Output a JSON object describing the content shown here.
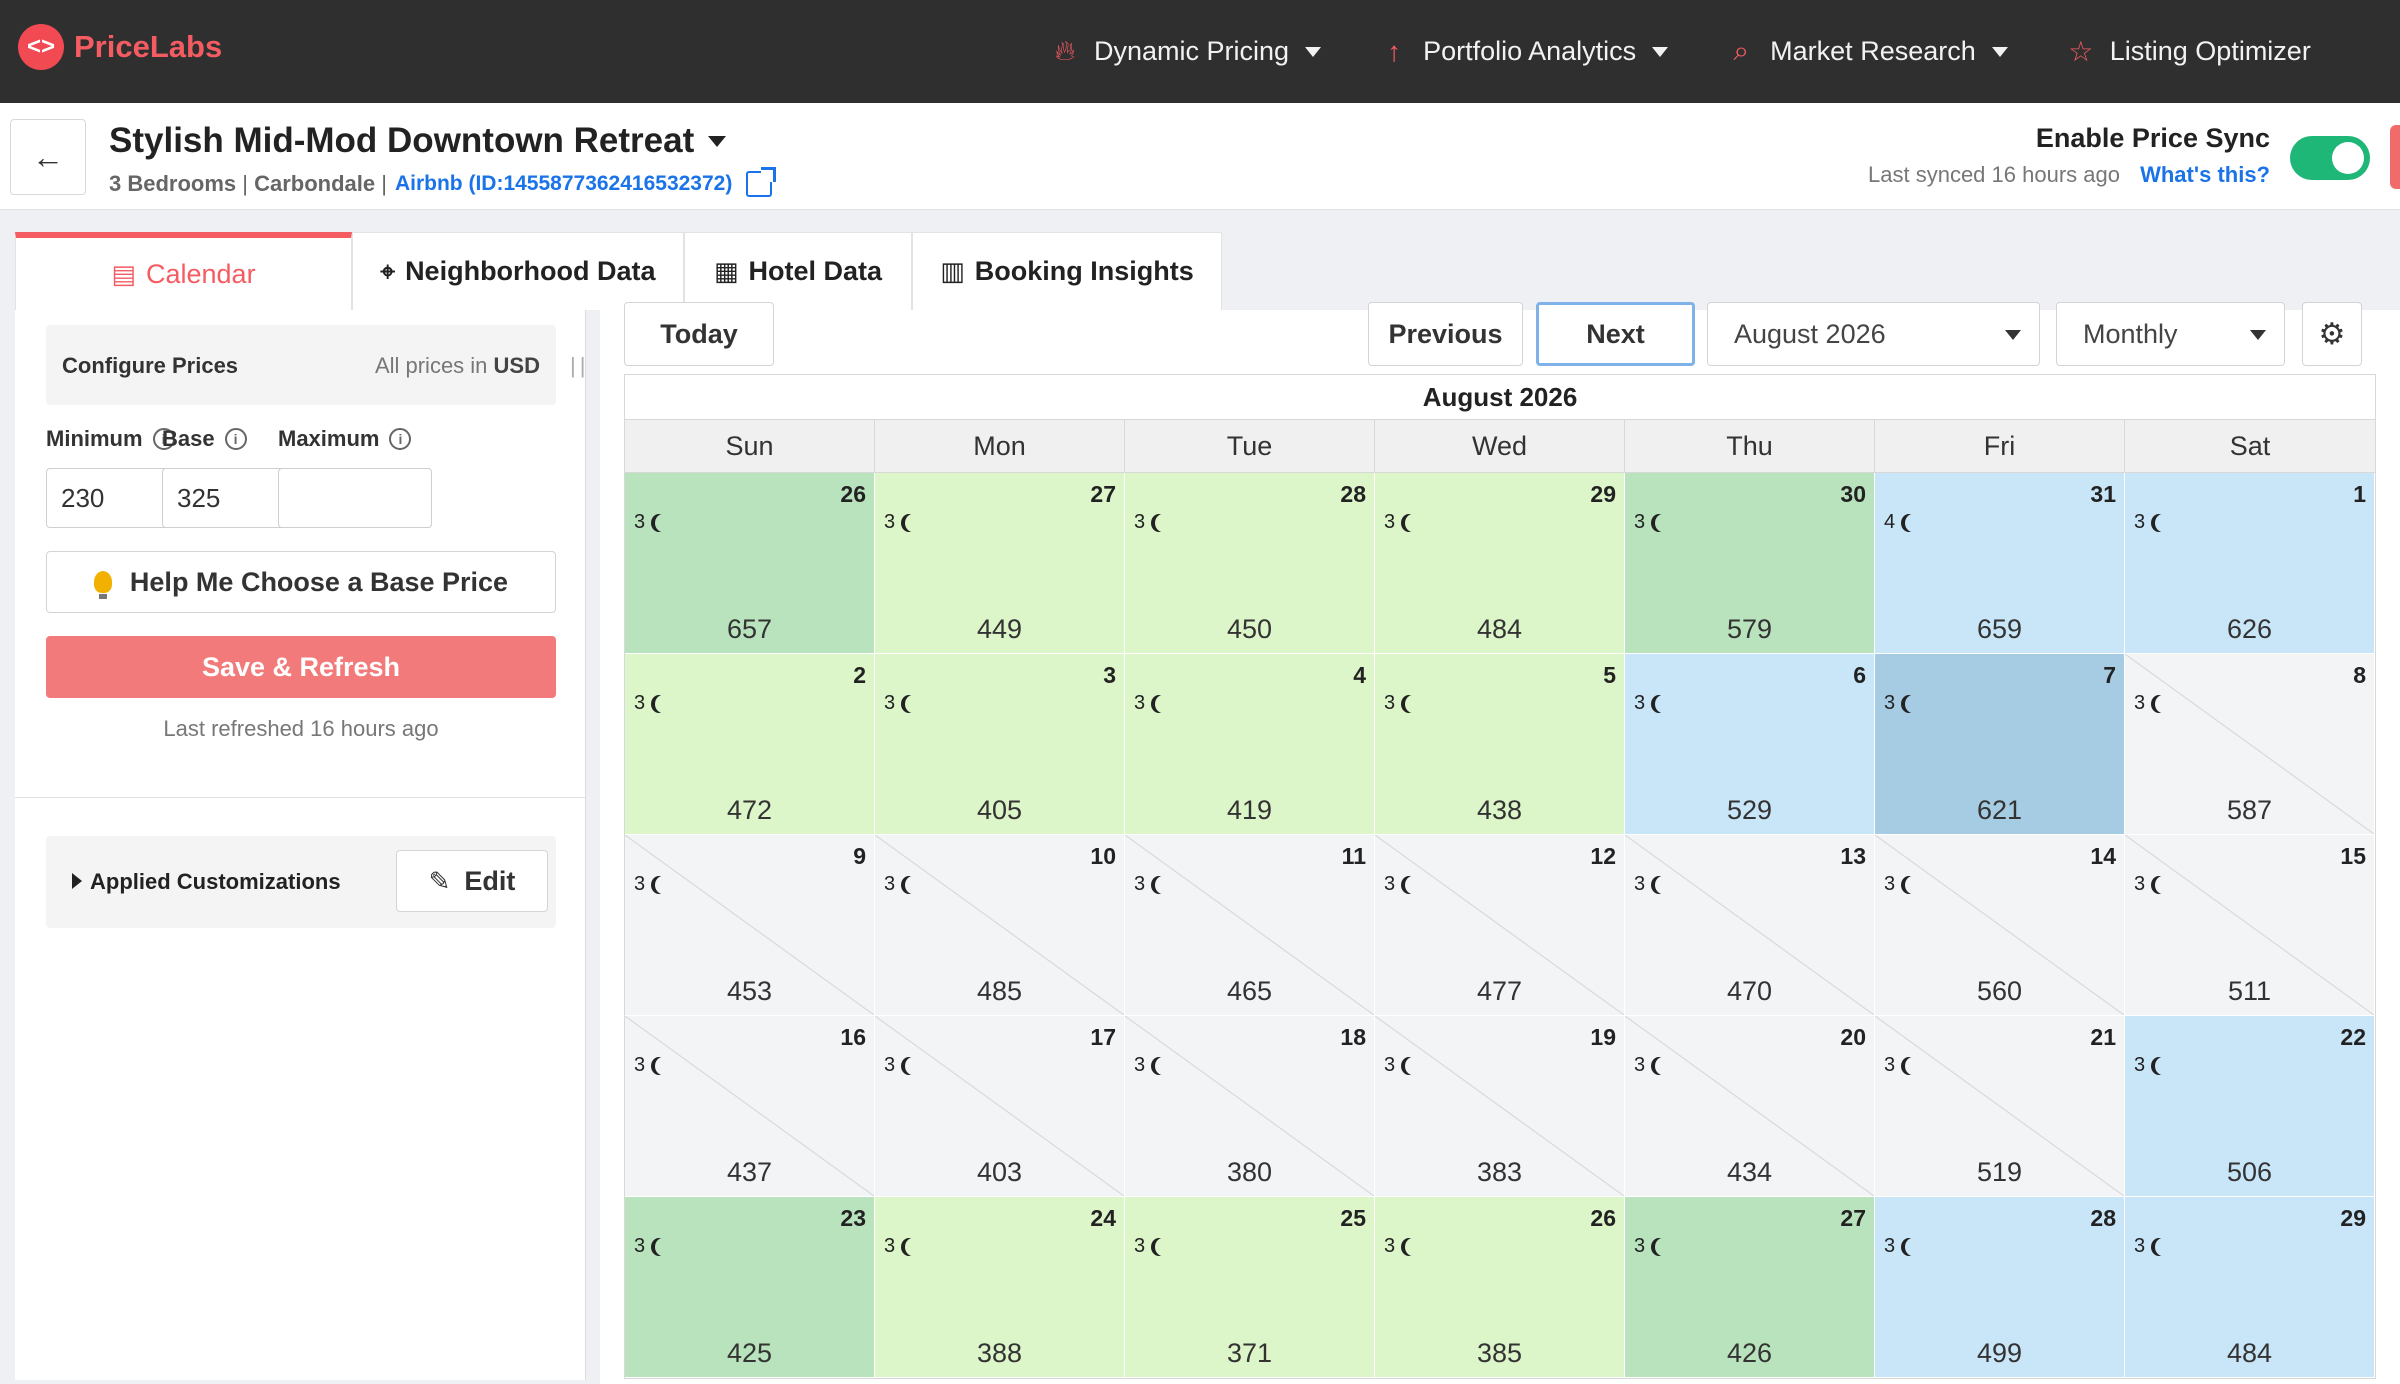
{
  "nav": {
    "brand": "PriceLabs",
    "items": [
      {
        "label": "Dynamic Pricing",
        "icon": "flame-icon"
      },
      {
        "label": "Portfolio Analytics",
        "icon": "chart-icon"
      },
      {
        "label": "Market Research",
        "icon": "search-chart-icon"
      },
      {
        "label": "Listing Optimizer",
        "icon": "star-icon"
      }
    ]
  },
  "listing": {
    "title": "Stylish Mid-Mod Downtown Retreat",
    "bedrooms": "3 Bedrooms",
    "city": "Carbondale",
    "airbnb": "Airbnb (ID:1455877362416532372)"
  },
  "sync": {
    "title": "Enable Price Sync",
    "last_synced": "Last synced 16 hours ago",
    "whats_this": "What's this?",
    "enabled": true
  },
  "tabs": [
    {
      "label": "Calendar",
      "icon": "calendar-icon",
      "active": true
    },
    {
      "label": "Neighborhood Data",
      "icon": "location-pin-icon"
    },
    {
      "label": "Hotel Data",
      "icon": "building-icon"
    },
    {
      "label": "Booking Insights",
      "icon": "booking-insights-icon"
    }
  ],
  "configure": {
    "title": "Configure Prices",
    "currency_prefix": "All prices in",
    "currency": "USD",
    "min_label": "Minimum",
    "base_label": "Base",
    "max_label": "Maximum",
    "min_value": "230",
    "base_value": "325",
    "max_value": "",
    "help_button": "Help Me Choose a Base Price",
    "save_button": "Save & Refresh",
    "last_refreshed": "Last refreshed 16 hours ago"
  },
  "customizations": {
    "label": "Applied Customizations",
    "edit_button": "Edit"
  },
  "calendar_controls": {
    "today": "Today",
    "previous": "Previous",
    "next": "Next",
    "month_select": "August 2026",
    "view_select": "Monthly"
  },
  "calendar": {
    "title": "August 2026",
    "weekdays": [
      "Sun",
      "Mon",
      "Tue",
      "Wed",
      "Thu",
      "Fri",
      "Sat"
    ],
    "colors": {
      "green_dark": "#b9e3bd",
      "green_light": "#dcf5c9",
      "blue_light": "#c9e5f8",
      "blue_dark": "#a6cce3",
      "unavailable": "#f3f4f6"
    },
    "weeks": [
      [
        {
          "day": "26",
          "stay": "3",
          "price": "657",
          "color": "green_dark"
        },
        {
          "day": "27",
          "stay": "3",
          "price": "449",
          "color": "green_light"
        },
        {
          "day": "28",
          "stay": "3",
          "price": "450",
          "color": "green_light"
        },
        {
          "day": "29",
          "stay": "3",
          "price": "484",
          "color": "green_light"
        },
        {
          "day": "30",
          "stay": "3",
          "price": "579",
          "color": "green_dark"
        },
        {
          "day": "31",
          "stay": "4",
          "price": "659",
          "color": "blue_light"
        },
        {
          "day": "1",
          "stay": "3",
          "price": "626",
          "color": "blue_light"
        }
      ],
      [
        {
          "day": "2",
          "stay": "3",
          "price": "472",
          "color": "green_light"
        },
        {
          "day": "3",
          "stay": "3",
          "price": "405",
          "color": "green_light"
        },
        {
          "day": "4",
          "stay": "3",
          "price": "419",
          "color": "green_light"
        },
        {
          "day": "5",
          "stay": "3",
          "price": "438",
          "color": "green_light"
        },
        {
          "day": "6",
          "stay": "3",
          "price": "529",
          "color": "blue_light"
        },
        {
          "day": "7",
          "stay": "3",
          "price": "621",
          "color": "blue_dark"
        },
        {
          "day": "8",
          "stay": "3",
          "price": "587",
          "color": "unavailable"
        }
      ],
      [
        {
          "day": "9",
          "stay": "3",
          "price": "453",
          "color": "unavailable"
        },
        {
          "day": "10",
          "stay": "3",
          "price": "485",
          "color": "unavailable"
        },
        {
          "day": "11",
          "stay": "3",
          "price": "465",
          "color": "unavailable"
        },
        {
          "day": "12",
          "stay": "3",
          "price": "477",
          "color": "unavailable"
        },
        {
          "day": "13",
          "stay": "3",
          "price": "470",
          "color": "unavailable"
        },
        {
          "day": "14",
          "stay": "3",
          "price": "560",
          "color": "unavailable"
        },
        {
          "day": "15",
          "stay": "3",
          "price": "511",
          "color": "unavailable"
        }
      ],
      [
        {
          "day": "16",
          "stay": "3",
          "price": "437",
          "color": "unavailable"
        },
        {
          "day": "17",
          "stay": "3",
          "price": "403",
          "color": "unavailable"
        },
        {
          "day": "18",
          "stay": "3",
          "price": "380",
          "color": "unavailable"
        },
        {
          "day": "19",
          "stay": "3",
          "price": "383",
          "color": "unavailable"
        },
        {
          "day": "20",
          "stay": "3",
          "price": "434",
          "color": "unavailable"
        },
        {
          "day": "21",
          "stay": "3",
          "price": "519",
          "color": "unavailable"
        },
        {
          "day": "22",
          "stay": "3",
          "price": "506",
          "color": "blue_light"
        }
      ],
      [
        {
          "day": "23",
          "stay": "3",
          "price": "425",
          "color": "green_dark"
        },
        {
          "day": "24",
          "stay": "3",
          "price": "388",
          "color": "green_light"
        },
        {
          "day": "25",
          "stay": "3",
          "price": "371",
          "color": "green_light"
        },
        {
          "day": "26",
          "stay": "3",
          "price": "385",
          "color": "green_light"
        },
        {
          "day": "27",
          "stay": "3",
          "price": "426",
          "color": "green_dark"
        },
        {
          "day": "28",
          "stay": "3",
          "price": "499",
          "color": "blue_light"
        },
        {
          "day": "29",
          "stay": "3",
          "price": "484",
          "color": "blue_light"
        }
      ]
    ]
  }
}
